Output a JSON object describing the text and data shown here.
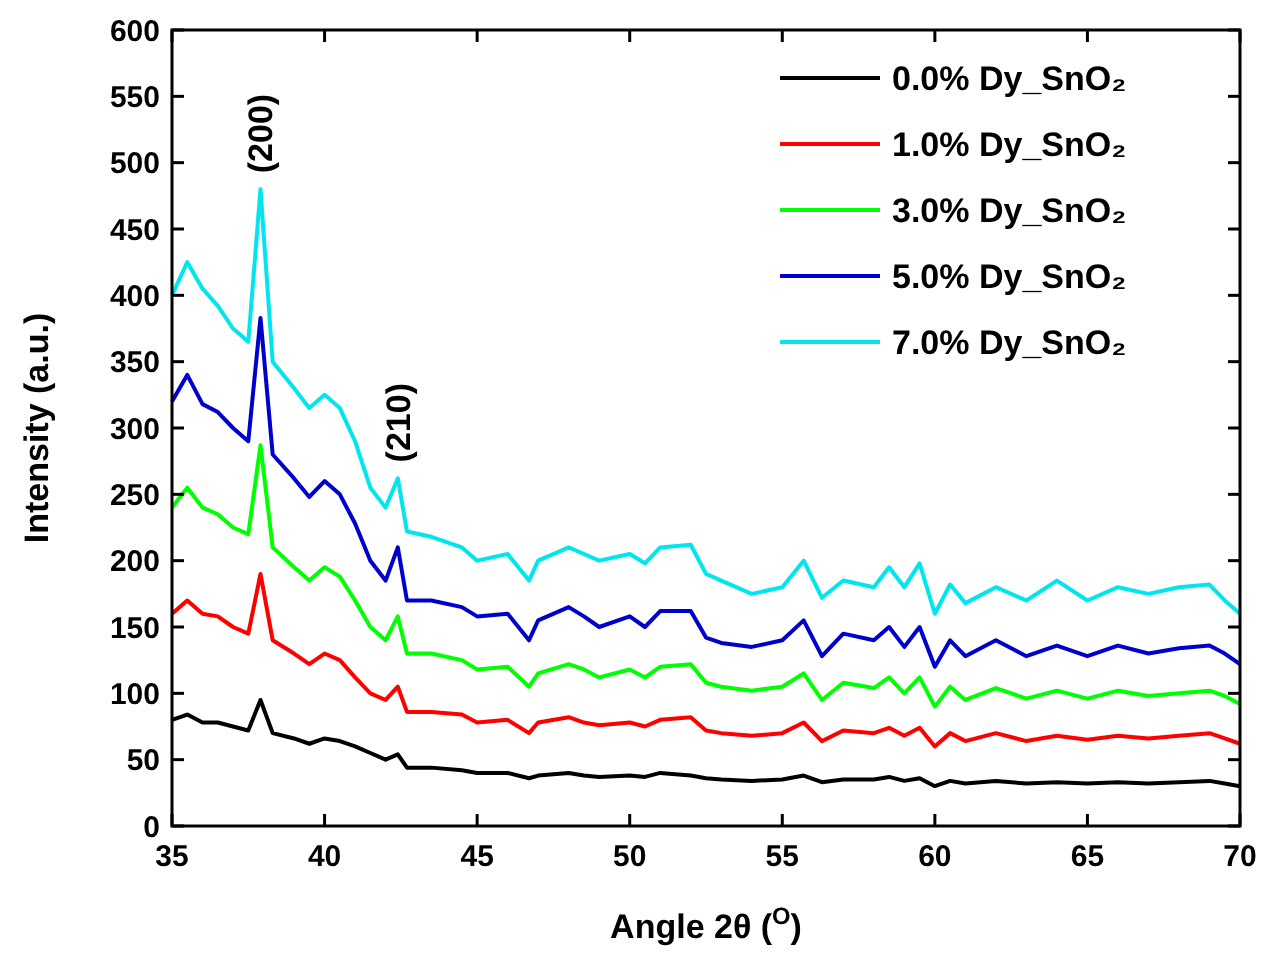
{
  "chart_data": {
    "type": "line",
    "xlabel": "Angle 2θ ($^{O}$)",
    "ylabel": "Intensity (a.u.)",
    "xlim": [
      35,
      70
    ],
    "xticks": [
      35,
      40,
      45,
      50,
      55,
      60,
      65,
      70
    ],
    "ylim": [
      0,
      600
    ],
    "yticks": [
      0,
      50,
      100,
      150,
      200,
      250,
      300,
      350,
      400,
      450,
      500,
      550,
      600
    ],
    "legend": "top right",
    "grid": false,
    "line_style": "solid",
    "marker": "none",
    "annotations": [
      {
        "text": "(200)",
        "x": 37.9,
        "y": 480
      },
      {
        "text": "(210)",
        "x": 42.4,
        "y": 262
      }
    ],
    "x": [
      35,
      35.5,
      36,
      36.5,
      37,
      37.5,
      37.9,
      38.3,
      39,
      39.5,
      40,
      40.5,
      41,
      41.5,
      42,
      42.4,
      42.7,
      43.5,
      44.5,
      45,
      46,
      46.7,
      47,
      48,
      48.5,
      49,
      50,
      50.5,
      51,
      52,
      52.5,
      53,
      54,
      55,
      55.7,
      56.3,
      57,
      58,
      58.5,
      59,
      59.5,
      60,
      60.5,
      61,
      62,
      63,
      64,
      65,
      66,
      67,
      68,
      69,
      69.5,
      70
    ],
    "series": [
      {
        "name": "0.0% Dy_SnO₂",
        "color": "#000000",
        "values": [
          80,
          84,
          78,
          78,
          75,
          72,
          95,
          70,
          66,
          62,
          66,
          64,
          60,
          55,
          50,
          54,
          44,
          44,
          42,
          40,
          40,
          36,
          38,
          40,
          38,
          37,
          38,
          37,
          40,
          38,
          36,
          35,
          34,
          35,
          38,
          33,
          35,
          35,
          37,
          34,
          36,
          30,
          34,
          32,
          34,
          32,
          33,
          32,
          33,
          32,
          33,
          34,
          32,
          30
        ]
      },
      {
        "name": "1.0% Dy_SnO₂",
        "color": "#ff0000",
        "values": [
          160,
          170,
          160,
          158,
          150,
          145,
          190,
          140,
          130,
          122,
          130,
          125,
          112,
          100,
          95,
          105,
          86,
          86,
          84,
          78,
          80,
          70,
          78,
          82,
          78,
          76,
          78,
          75,
          80,
          82,
          72,
          70,
          68,
          70,
          78,
          64,
          72,
          70,
          74,
          68,
          74,
          60,
          70,
          64,
          70,
          64,
          68,
          65,
          68,
          66,
          68,
          70,
          66,
          62
        ]
      },
      {
        "name": "3.0% Dy_SnO₂",
        "color": "#00ff00",
        "values": [
          240,
          255,
          240,
          235,
          225,
          220,
          287,
          210,
          195,
          185,
          195,
          188,
          170,
          150,
          140,
          158,
          130,
          130,
          125,
          118,
          120,
          105,
          115,
          122,
          118,
          112,
          118,
          112,
          120,
          122,
          108,
          105,
          102,
          105,
          115,
          95,
          108,
          104,
          112,
          100,
          112,
          90,
          105,
          95,
          104,
          96,
          102,
          96,
          102,
          98,
          100,
          102,
          98,
          92
        ]
      },
      {
        "name": "5.0% Dy_SnO₂",
        "color": "#0000cc",
        "values": [
          320,
          340,
          318,
          312,
          300,
          290,
          383,
          280,
          262,
          248,
          260,
          250,
          228,
          200,
          185,
          210,
          170,
          170,
          165,
          158,
          160,
          140,
          155,
          165,
          158,
          150,
          158,
          150,
          162,
          162,
          142,
          138,
          135,
          140,
          155,
          128,
          145,
          140,
          150,
          135,
          150,
          120,
          140,
          128,
          140,
          128,
          136,
          128,
          136,
          130,
          134,
          136,
          130,
          122
        ]
      },
      {
        "name": "7.0% Dy_SnO₂",
        "color": "#00e5ee",
        "values": [
          400,
          425,
          405,
          392,
          375,
          365,
          480,
          350,
          330,
          315,
          325,
          315,
          290,
          255,
          240,
          262,
          222,
          218,
          210,
          200,
          205,
          185,
          200,
          210,
          205,
          200,
          205,
          198,
          210,
          212,
          190,
          185,
          175,
          180,
          200,
          172,
          185,
          180,
          195,
          180,
          198,
          160,
          182,
          168,
          180,
          170,
          185,
          170,
          180,
          175,
          180,
          182,
          170,
          160
        ]
      }
    ]
  }
}
